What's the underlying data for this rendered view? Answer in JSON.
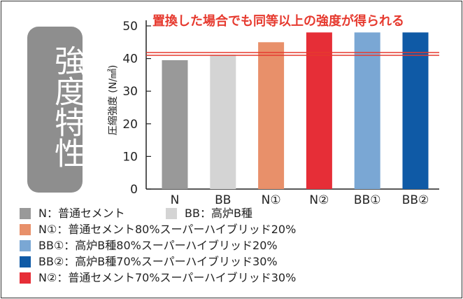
{
  "badge_title": "強度特性",
  "chart_data": {
    "type": "bar",
    "title": "",
    "annotation": "置換した場合でも同等以上の強度が得られる",
    "xlabel": "",
    "ylabel": "圧縮強度 (N/㎟)",
    "ylim": [
      0,
      50
    ],
    "yticks": [
      0,
      10,
      20,
      30,
      40,
      50
    ],
    "grid": false,
    "reference_line": 41.2,
    "categories": [
      "N",
      "BB",
      "N①",
      "N②",
      "BB①",
      "BB②"
    ],
    "values": [
      39.5,
      41.2,
      45,
      48,
      48,
      48
    ],
    "colors": [
      "#999999",
      "#d4d4d4",
      "#e8906a",
      "#e62e37",
      "#7aa7d4",
      "#0f5aa6"
    ],
    "accent_color": "#e63a2f"
  },
  "legend": [
    {
      "text": "N：普通セメント",
      "color": "#999999"
    },
    {
      "text": "BB：高炉B種",
      "color": "#d4d4d4"
    },
    {
      "text": "N①：普通セメント80%スーパーハイブリッド20%",
      "color": "#e8906a"
    },
    {
      "text": "BB①：高炉B種80%スーパーハイブリッド20%",
      "color": "#7aa7d4"
    },
    {
      "text": "BB②：高炉B種70%スーパーハイブリッド30%",
      "color": "#0f5aa6"
    },
    {
      "text": "N②：普通セメント70%スーパーハイブリッド30%",
      "color": "#e62e37"
    }
  ]
}
